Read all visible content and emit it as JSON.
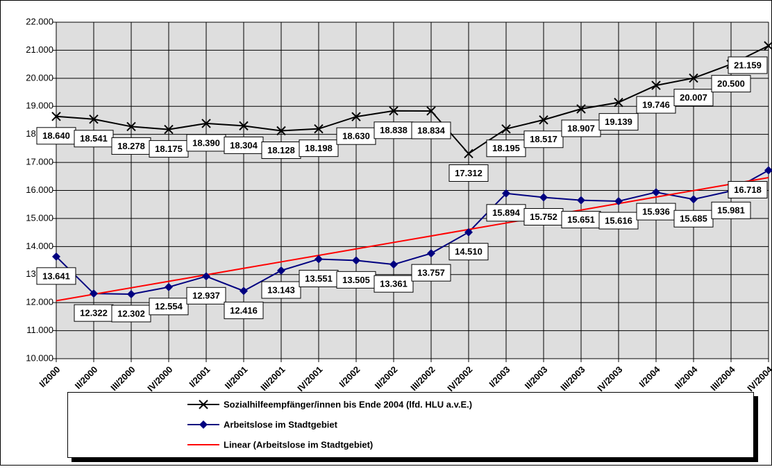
{
  "chart_data": {
    "type": "line",
    "categories": [
      "I/2000",
      "II/2000",
      "III/2000",
      "IV/2000",
      "I/2001",
      "II/2001",
      "III/2001",
      "IV/2001",
      "I/2002",
      "II/2002",
      "III/2002",
      "IV/2002",
      "I/2003",
      "II/2003",
      "III/2003",
      "IV/2003",
      "I/2004",
      "II/2004",
      "III/2004",
      "IV/2004"
    ],
    "series": [
      {
        "name": "Sozialhilfeempfänger/innen bis Ende 2004 (lfd. HLU a.v.E.)",
        "color": "#000000",
        "marker": "x",
        "values": [
          18640,
          18541,
          18278,
          18175,
          18390,
          18304,
          18128,
          18198,
          18630,
          18838,
          18834,
          17312,
          18195,
          18517,
          18907,
          19139,
          19746,
          20007,
          20500,
          21159
        ],
        "value_labels": [
          "18.640",
          "18.541",
          "18.278",
          "18.175",
          "18.390",
          "18.304",
          "18.128",
          "18.198",
          "18.630",
          "18.838",
          "18.834",
          "17.312",
          "18.195",
          "18.517",
          "18.907",
          "19.139",
          "19.746",
          "20.007",
          "20.500",
          "21.159"
        ]
      },
      {
        "name": "Arbeitslose im Stadtgebiet",
        "color": "#000080",
        "marker": "diamond",
        "values": [
          13641,
          12322,
          12302,
          12554,
          12937,
          12416,
          13143,
          13551,
          13505,
          13361,
          13757,
          14510,
          15894,
          15752,
          15651,
          15616,
          15936,
          15685,
          15981,
          16718
        ],
        "value_labels": [
          "13.641",
          "12.322",
          "12.302",
          "12.554",
          "12.937",
          "12.416",
          "13.143",
          "13.551",
          "13.505",
          "13.361",
          "13.757",
          "14.510",
          "15.894",
          "15.752",
          "15.651",
          "15.616",
          "15.936",
          "15.685",
          "15.981",
          "16.718"
        ]
      },
      {
        "name": "Linear (Arbeitslose im Stadtgebiet)",
        "color": "#ff0000",
        "marker": "none",
        "values": [
          12066,
          12297,
          12528,
          12759,
          12990,
          13222,
          13453,
          13684,
          13915,
          14146,
          14377,
          14608,
          14839,
          15070,
          15302,
          15533,
          15764,
          15995,
          16226,
          16457
        ]
      }
    ],
    "ylim": [
      10000,
      22000
    ],
    "yticks": [
      {
        "value": 10000,
        "label": "10.000"
      },
      {
        "value": 11000,
        "label": "11.000"
      },
      {
        "value": 12000,
        "label": "12.000"
      },
      {
        "value": 13000,
        "label": "13.000"
      },
      {
        "value": 14000,
        "label": "14.000"
      },
      {
        "value": 15000,
        "label": "15.000"
      },
      {
        "value": 16000,
        "label": "16.000"
      },
      {
        "value": 17000,
        "label": "17.000"
      },
      {
        "value": 18000,
        "label": "18.000"
      },
      {
        "value": 19000,
        "label": "19.000"
      },
      {
        "value": 20000,
        "label": "20.000"
      },
      {
        "value": 21000,
        "label": "21.000"
      },
      {
        "value": 22000,
        "label": "22.000"
      }
    ],
    "grid": true
  }
}
